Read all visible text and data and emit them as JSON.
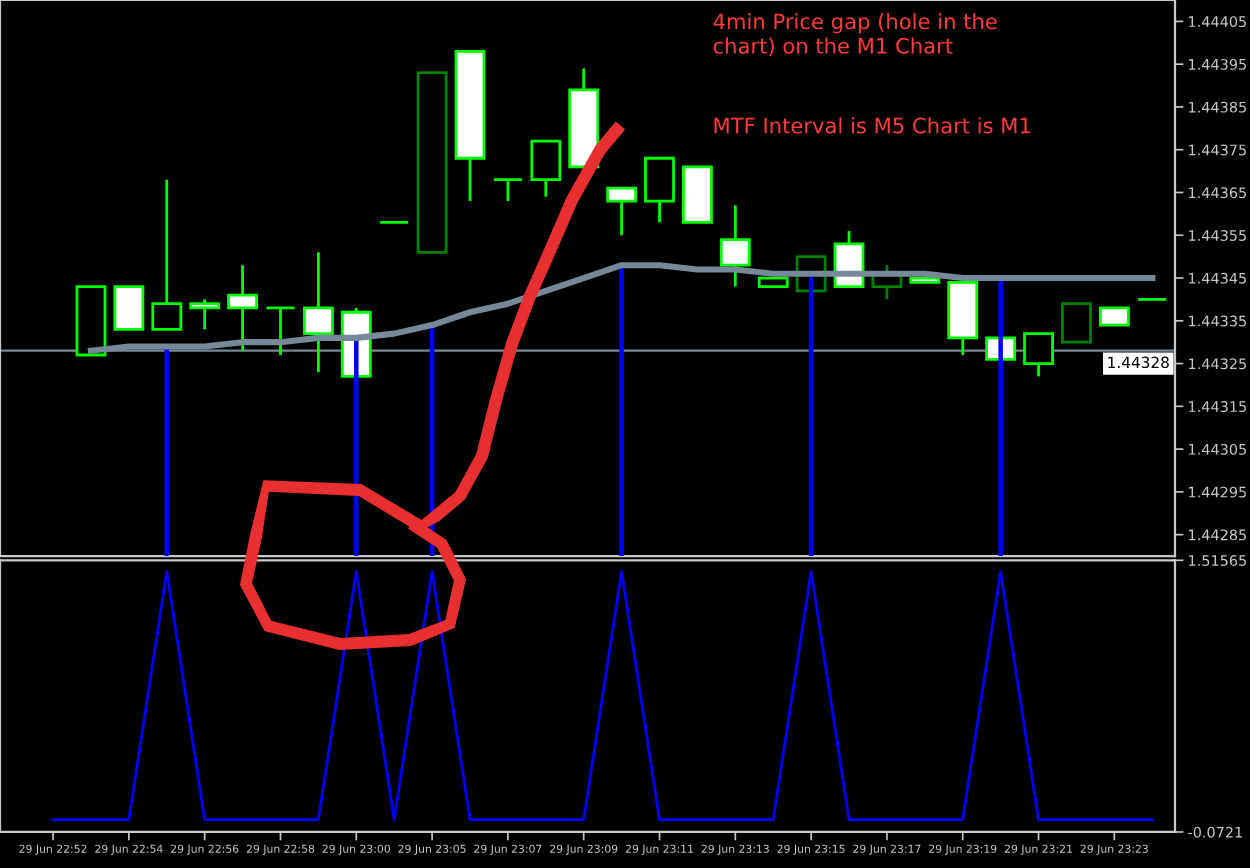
{
  "chart_data": [
    {
      "type": "candlestick",
      "categories": [
        null,
        null,
        null,
        null,
        null,
        null,
        null,
        null,
        null,
        null,
        null,
        null,
        null,
        null,
        null,
        null,
        null,
        null,
        null,
        null,
        null,
        null,
        null,
        null,
        null,
        null,
        null,
        null,
        null,
        null
      ],
      "ohlc": [
        null,
        [
          1.44327,
          1.44343,
          1.44327,
          1.44343
        ],
        [
          1.44343,
          1.44343,
          1.44333,
          1.44333
        ],
        [
          1.44333,
          1.44368,
          1.44333,
          1.44339
        ],
        [
          1.44339,
          1.4434,
          1.44333,
          1.44338
        ],
        [
          1.44341,
          1.44348,
          1.44328,
          1.44338
        ],
        [
          1.44338,
          1.44338,
          1.44327,
          1.44338
        ],
        [
          1.44338,
          1.44351,
          1.44323,
          1.44332
        ],
        [
          1.44337,
          1.44338,
          1.44322,
          1.44322
        ],
        [
          1.44358,
          1.44358,
          1.44358,
          1.44358
        ],
        [
          1.44351,
          1.44393,
          1.44351,
          1.44393
        ],
        [
          1.44398,
          1.44398,
          1.44363,
          1.44373
        ],
        [
          1.44368,
          1.44368,
          1.44363,
          1.44368
        ],
        [
          1.44368,
          1.44377,
          1.44364,
          1.44377
        ],
        [
          1.44389,
          1.44394,
          1.44371,
          1.44371
        ],
        [
          1.44366,
          1.44366,
          1.44355,
          1.44363
        ],
        [
          1.44363,
          1.44373,
          1.44358,
          1.44373
        ],
        [
          1.44371,
          1.44371,
          1.44358,
          1.44358
        ],
        [
          1.44354,
          1.44362,
          1.44343,
          1.44348
        ],
        [
          1.44343,
          1.44345,
          1.44343,
          1.44345
        ],
        [
          1.44342,
          1.4435,
          1.44342,
          1.4435
        ],
        [
          1.44353,
          1.44356,
          1.44343,
          1.44343
        ],
        [
          1.44343,
          1.44348,
          1.4434,
          1.44346
        ],
        [
          1.44345,
          1.44345,
          1.44344,
          1.44344
        ],
        [
          1.44344,
          1.44344,
          1.44327,
          1.44331
        ],
        [
          1.44331,
          1.44331,
          1.44326,
          1.44326
        ],
        [
          1.44325,
          1.44332,
          1.44322,
          1.44332
        ],
        [
          1.4433,
          1.44339,
          1.4433,
          1.44339
        ],
        [
          1.44338,
          1.44338,
          1.44334,
          1.44334
        ],
        [
          1.4434,
          1.4434,
          1.4434,
          1.4434
        ]
      ],
      "colors": [
        "#00ff00",
        "#00ff00",
        "#00ff00",
        "#00ff00",
        "#00ff00",
        "#00ff00",
        "#00ff00",
        "#00ff00",
        "#00ff00",
        "#00ff00",
        "#008000",
        "#00ff00",
        "#00ff00",
        "#00ff00",
        "#00ff00",
        "#00ff00",
        "#00ff00",
        "#00ff00",
        "#00ff00",
        "#00ff00",
        "#008000",
        "#00ff00",
        "#008000",
        "#00ff00",
        "#00ff00",
        "#00ff00",
        "#00ff00",
        "#008000",
        "#00ff00",
        "#00ff00"
      ],
      "series": [
        {
          "type": "line",
          "color": "#778899",
          "values": [
            null,
            1.44328,
            1.44329,
            1.44329,
            1.44329,
            1.4433,
            1.4433,
            1.44331,
            1.44331,
            1.44332,
            1.44334,
            1.44337,
            1.44339,
            1.44342,
            1.44345,
            1.44348,
            1.44348,
            1.44347,
            1.44347,
            1.44346,
            1.44346,
            1.44346,
            1.44346,
            1.44346,
            1.44345,
            1.44345,
            1.44345,
            1.44345,
            1.44345,
            1.44345
          ]
        },
        {
          "type": "bar",
          "color": "#0000ff",
          "values": [
            null,
            null,
            null,
            1.44329,
            null,
            null,
            null,
            null,
            1.44331,
            null,
            1.44334,
            null,
            null,
            null,
            null,
            1.44348,
            null,
            null,
            null,
            null,
            1.44346,
            null,
            null,
            null,
            null,
            1.44345,
            null,
            null,
            null,
            null
          ]
        }
      ],
      "ylim": [
        1.4428,
        1.4441
      ],
      "yticks": [
        1.44285,
        1.44295,
        1.44305,
        1.44315,
        1.44325,
        1.44335,
        1.44345,
        1.44355,
        1.44365,
        1.44375,
        1.44385,
        1.44395,
        1.44405
      ],
      "tick_labels": "y",
      "ref_lines": [
        {
          "axis": "y",
          "value": 1.44328,
          "label": "1.44328",
          "color": "#778899"
        }
      ],
      "annotations": [
        "4min Price gap (hole in the\nchart) on the M1 Chart",
        "MTF Interval is M5 Chart is M1"
      ]
    },
    {
      "type": "line",
      "categories": [
        "29 Jun 22:52",
        null,
        "29 Jun 22:54",
        null,
        "29 Jun 22:56",
        null,
        "29 Jun 22:58",
        null,
        "29 Jun 23:00",
        null,
        "29 Jun 23:05",
        null,
        "29 Jun 23:07",
        null,
        "29 Jun 23:09",
        null,
        "29 Jun 23:11",
        null,
        "29 Jun 23:13",
        null,
        "29 Jun 23:15",
        null,
        "29 Jun 23:17",
        null,
        "29 Jun 23:19",
        null,
        "29 Jun 23:21",
        null,
        "29 Jun 23:23",
        null
      ],
      "values": [
        0,
        0,
        0,
        1.45,
        0,
        0,
        0,
        0,
        1.45,
        0,
        1.45,
        0,
        0,
        0,
        0,
        1.45,
        0,
        0,
        0,
        0,
        1.45,
        0,
        0,
        0,
        0,
        1.45,
        0,
        0,
        0,
        0
      ],
      "color": "#0000ff",
      "ylim": [
        -0.0721,
        1.51565
      ],
      "yticks": [
        -0.0721,
        1.51565
      ]
    }
  ]
}
